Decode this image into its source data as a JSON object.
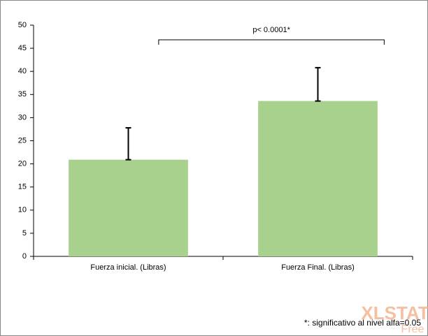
{
  "chart_data": {
    "type": "bar",
    "categories": [
      "Fuerza inicial. (Libras)",
      "Fuerza Final. (Libras)"
    ],
    "values": [
      20.9,
      33.6
    ],
    "errors": [
      6.9,
      7.2
    ],
    "color": "#a9d18e",
    "ylim": [
      0,
      50
    ],
    "yticks": [
      0,
      5,
      10,
      15,
      20,
      25,
      30,
      35,
      40,
      45,
      50
    ],
    "grid": false,
    "annotation": "p< 0.0001*",
    "footnote": "*: significativo al nivel alfa=0.05",
    "watermark": [
      "XLSTAT",
      "Free"
    ]
  }
}
